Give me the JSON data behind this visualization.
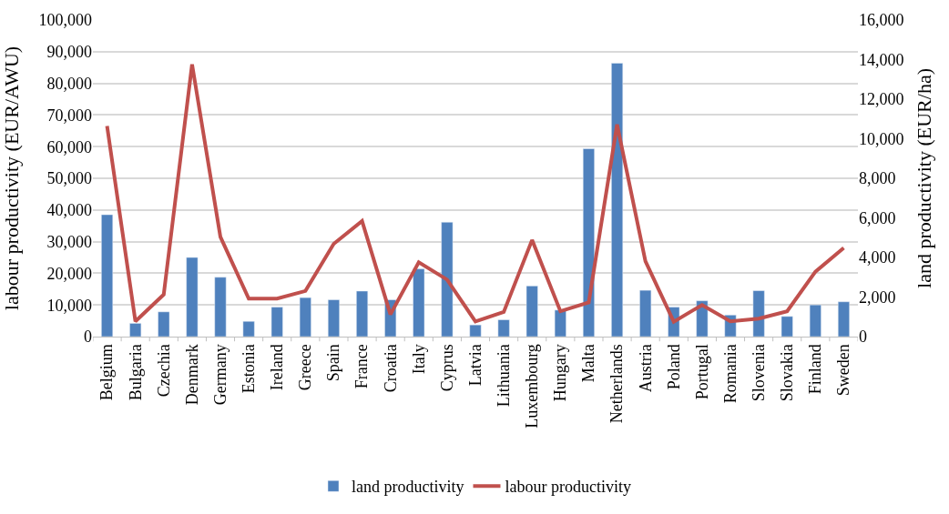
{
  "chart_data": {
    "type": "bar",
    "categories": [
      "Belgium",
      "Bulgaria",
      "Czechia",
      "Denmark",
      "Germany",
      "Estonia",
      "Ireland",
      "Greece",
      "Spain",
      "France",
      "Croatia",
      "Italy",
      "Cyprus",
      "Latvia",
      "Lithuania",
      "Luxembourg",
      "Hungary",
      "Malta",
      "Netherlands",
      "Austria",
      "Poland",
      "Portugal",
      "Romania",
      "Slovenia",
      "Slovakia",
      "Finland",
      "Sweden"
    ],
    "series": [
      {
        "name": "land productivity",
        "axis": "y2",
        "color": "#4f81bd",
        "values": [
          6160,
          670,
          1250,
          4000,
          3000,
          770,
          1490,
          1970,
          1860,
          2300,
          1860,
          3420,
          5780,
          590,
          850,
          2560,
          1340,
          9500,
          13820,
          2340,
          1490,
          1810,
          1090,
          2320,
          1020,
          1600,
          1760
        ]
      },
      {
        "name": "labour productivity",
        "type": "line",
        "color": "#c0504d",
        "values": [
          66500,
          4800,
          13300,
          86000,
          31500,
          12000,
          12000,
          14400,
          29300,
          36500,
          7000,
          23500,
          18000,
          4800,
          7800,
          30500,
          8000,
          10800,
          67000,
          23800,
          4700,
          10000,
          4800,
          5700,
          8000,
          20500,
          28000
        ]
      }
    ],
    "ylabel": "labour productivity (EUR/AWU)",
    "y2label": "land productivity (EUR/ha)",
    "ylim": [
      0,
      100000
    ],
    "yticks": [
      {
        "value": 0,
        "label": "0"
      },
      {
        "value": 10000,
        "label": "10,000"
      },
      {
        "value": 20000,
        "label": "20,000"
      },
      {
        "value": 30000,
        "label": "30,000"
      },
      {
        "value": 40000,
        "label": "40,000"
      },
      {
        "value": 50000,
        "label": "50,000"
      },
      {
        "value": 60000,
        "label": "60,000"
      },
      {
        "value": 70000,
        "label": "70,000"
      },
      {
        "value": 80000,
        "label": "80,000"
      },
      {
        "value": 90000,
        "label": "90,000"
      },
      {
        "value": 100000,
        "label": "100,000"
      }
    ],
    "y2lim": [
      0,
      16000
    ],
    "y2ticks": [
      {
        "value": 0,
        "label": "0"
      },
      {
        "value": 2000,
        "label": "2,000"
      },
      {
        "value": 4000,
        "label": "4,000"
      },
      {
        "value": 6000,
        "label": "6,000"
      },
      {
        "value": 8000,
        "label": "8,000"
      },
      {
        "value": 10000,
        "label": "10,000"
      },
      {
        "value": 12000,
        "label": "12,000"
      },
      {
        "value": 14000,
        "label": "14,000"
      },
      {
        "value": 16000,
        "label": "16,000"
      }
    ],
    "grid": "y",
    "legend": "bottom",
    "line_style": "solid",
    "marker": "none"
  }
}
